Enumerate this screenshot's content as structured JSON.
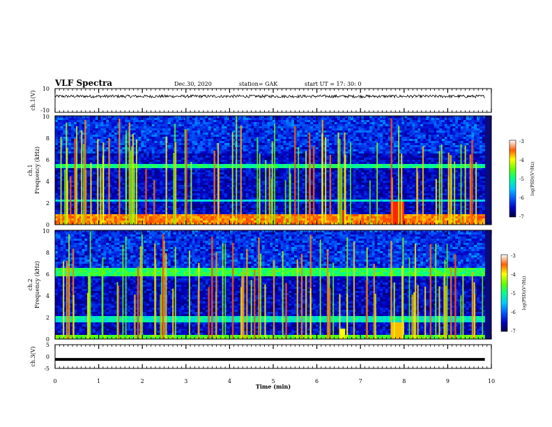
{
  "header": {
    "title": "VLF Spectra",
    "date": "Dec.30, 2020",
    "station": "station= GAK",
    "start": "start  UT =   17: 30: 0"
  },
  "chart_data": [
    {
      "type": "line",
      "panel": "ch1-waveform",
      "ylabel": "ch.1(V)",
      "ylim": [
        -10,
        10
      ],
      "yticks": [
        "10",
        "-10"
      ],
      "xlim": [
        0,
        10
      ],
      "series": [
        {
          "baseline": 3.5,
          "noise_amplitude": 1.2
        }
      ]
    },
    {
      "type": "heatmap",
      "panel": "ch1-spectrogram",
      "ylabel": "ch.1\nFrequency (kHz)",
      "ylabel_lines": [
        "ch.1",
        "Frequency (kHz)"
      ],
      "ylim": [
        0,
        10
      ],
      "yticks": [
        "0",
        "2",
        "4",
        "6",
        "8",
        "10"
      ],
      "xlim": [
        0,
        10
      ],
      "colorbar": {
        "label": "log(PSD)(V²/Hz)",
        "range": [
          -7,
          -3
        ],
        "ticks": [
          "-3",
          "-4",
          "-5",
          "-6",
          "-7"
        ]
      },
      "bands_khz": [
        {
          "low": 0,
          "high": 1,
          "level": -3.6
        },
        {
          "low": 5.2,
          "high": 5.5,
          "level": -5.0
        },
        {
          "low": 2.1,
          "high": 2.3,
          "level": -5.4
        }
      ],
      "bursts_min": [
        {
          "t0": 6.5,
          "t1": 6.65,
          "fmax_khz": 1.3,
          "level": -3.0
        },
        {
          "t0": 7.7,
          "t1": 8.0,
          "fmax_khz": 2.2,
          "level": -3.2
        }
      ]
    },
    {
      "type": "heatmap",
      "panel": "ch2-spectrogram",
      "ylabel": "ch.2\nFrequency (kHz)",
      "ylabel_lines": [
        "ch.2",
        "Frequency (kHz)"
      ],
      "ylim": [
        0,
        10
      ],
      "yticks": [
        "0",
        "2",
        "4",
        "6",
        "8",
        "10"
      ],
      "xlim": [
        0,
        10
      ],
      "colorbar": {
        "label": "log(PSD)(V²/Hz)",
        "range": [
          -7,
          -3
        ],
        "ticks": [
          "-3",
          "-4",
          "-5",
          "-6",
          "-7"
        ]
      },
      "bands_khz": [
        {
          "low": 5.8,
          "high": 6.5,
          "level": -4.8
        },
        {
          "low": 1.5,
          "high": 2.1,
          "level": -5.2
        },
        {
          "low": 0,
          "high": 0.3,
          "level": -4.6
        }
      ],
      "bursts_min": [
        {
          "t0": 6.5,
          "t1": 6.65,
          "fmax_khz": 1.0,
          "level": -4.0
        },
        {
          "t0": 7.7,
          "t1": 8.0,
          "fmax_khz": 1.6,
          "level": -3.8
        }
      ]
    },
    {
      "type": "line",
      "panel": "ch3-waveform",
      "ylabel": "ch.3(V)",
      "ylim": [
        -5,
        5
      ],
      "yticks": [
        "5",
        "0",
        "-5"
      ],
      "xlabel": "Time (min)",
      "xlim": [
        0,
        10
      ],
      "xticks": [
        "0",
        "1",
        "2",
        "3",
        "4",
        "5",
        "6",
        "7",
        "8",
        "9",
        "10"
      ],
      "series": [
        {
          "constant": -1.2
        }
      ]
    }
  ]
}
